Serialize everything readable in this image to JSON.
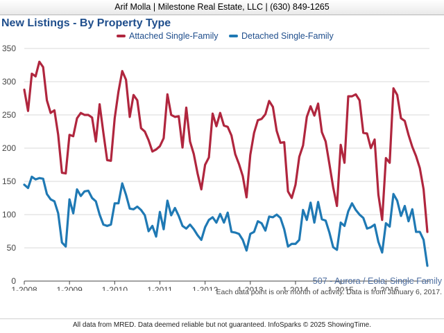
{
  "header": {
    "text": "Arif Molla | Milestone Real Estate, LLC | (630) 849-1265"
  },
  "chart_data": {
    "type": "line",
    "title": "New Listings - By Property Type",
    "xlabel": "",
    "ylabel": "",
    "ylim": [
      0,
      350
    ],
    "yticks": [
      0,
      50,
      100,
      150,
      200,
      250,
      300,
      350
    ],
    "x_tick_labels": [
      "1-2008",
      "1-2009",
      "1-2010",
      "1-2011",
      "1-2012",
      "1-2013",
      "1-2014",
      "1-2015",
      "1-2016"
    ],
    "x_start": "2008-01",
    "grid": "horizontal",
    "legend_position": "top-center",
    "series": [
      {
        "name": "Attached Single-Family",
        "color": "#b0263e",
        "values": [
          288,
          256,
          312,
          308,
          330,
          322,
          272,
          253,
          257,
          220,
          163,
          162,
          220,
          218,
          245,
          253,
          250,
          250,
          246,
          210,
          266,
          223,
          182,
          181,
          245,
          285,
          316,
          303,
          247,
          280,
          272,
          230,
          225,
          212,
          195,
          198,
          203,
          215,
          281,
          250,
          247,
          248,
          201,
          261,
          210,
          191,
          162,
          138,
          175,
          186,
          252,
          233,
          253,
          234,
          232,
          219,
          191,
          176,
          158,
          126,
          190,
          223,
          242,
          244,
          251,
          271,
          262,
          226,
          208,
          209,
          135,
          125,
          145,
          187,
          204,
          247,
          263,
          249,
          267,
          224,
          210,
          176,
          141,
          113,
          205,
          178,
          278,
          278,
          281,
          272,
          223,
          222,
          200,
          213,
          130,
          92,
          185,
          178,
          290,
          280,
          245,
          241,
          220,
          202,
          188,
          170,
          138,
          74
        ]
      },
      {
        "name": "Detached Single-Family",
        "color": "#1f79b4",
        "values": [
          145,
          140,
          157,
          153,
          155,
          154,
          131,
          123,
          120,
          102,
          58,
          52,
          123,
          102,
          138,
          128,
          135,
          136,
          125,
          120,
          100,
          85,
          83,
          85,
          117,
          117,
          147,
          130,
          109,
          108,
          112,
          107,
          99,
          75,
          83,
          67,
          104,
          78,
          121,
          99,
          110,
          98,
          83,
          79,
          85,
          78,
          69,
          62,
          81,
          92,
          96,
          88,
          101,
          88,
          103,
          74,
          73,
          71,
          62,
          46,
          71,
          74,
          90,
          87,
          76,
          97,
          96,
          100,
          95,
          78,
          52,
          56,
          56,
          62,
          107,
          92,
          118,
          88,
          119,
          93,
          91,
          73,
          51,
          47,
          88,
          83,
          105,
          117,
          107,
          100,
          95,
          79,
          81,
          85,
          59,
          43,
          87,
          82,
          131,
          121,
          98,
          113,
          90,
          108,
          74,
          74,
          62,
          23
        ]
      }
    ]
  },
  "area_label": "507 - Aurora / Eola: Single Family",
  "note": "Each data point is one month of activity. Data is from January 6, 2017.",
  "footer": "All data from MRED. Data deemed reliable but not guaranteed. InfoSparks © 2025 ShowingTime."
}
